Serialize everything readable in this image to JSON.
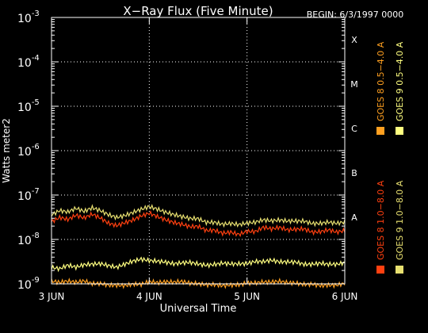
{
  "title": "X−Ray Flux (Five Minute)",
  "begin_label": "BEGIN: 6/3/1997 0000",
  "chart_data": {
    "type": "line",
    "xlabel": "Universal Time",
    "ylabel": "Watts meter2",
    "x_ticks": [
      "3 JUN",
      "4 JUN",
      "5 JUN",
      "6 JUN"
    ],
    "xlim": [
      0,
      72
    ],
    "ylim_exp": [
      -9,
      -3
    ],
    "y_ticks": [
      {
        "exp": -9,
        "label": "-9"
      },
      {
        "exp": -8,
        "label": "-8"
      },
      {
        "exp": -7,
        "label": "-7"
      },
      {
        "exp": -6,
        "label": "-6"
      },
      {
        "exp": -5,
        "label": "-5"
      },
      {
        "exp": -4,
        "label": "-4"
      },
      {
        "exp": -3,
        "label": "-3"
      }
    ],
    "flare_classes": [
      {
        "label": "X",
        "exp": -3.5
      },
      {
        "label": "M",
        "exp": -4.5
      },
      {
        "label": "C",
        "exp": -5.5
      },
      {
        "label": "B",
        "exp": -6.5
      },
      {
        "label": "A",
        "exp": -7.5
      }
    ],
    "grid": true,
    "series": [
      {
        "name": "GOES 8 1.0−8.0 A",
        "color": "#ff4010",
        "x": [
          0,
          2,
          4,
          6,
          8,
          10,
          12,
          14,
          16,
          18,
          20,
          22,
          24,
          26,
          28,
          30,
          32,
          34,
          36,
          38,
          40,
          42,
          44,
          46,
          48,
          50,
          52,
          54,
          56,
          58,
          60,
          62,
          64,
          66,
          68,
          70,
          72
        ],
        "y": [
          2.5e-08,
          3e-08,
          2.6e-08,
          3.2e-08,
          2.8e-08,
          3.5e-08,
          3e-08,
          2.4e-08,
          2.2e-08,
          2.6e-08,
          3e-08,
          3.6e-08,
          4e-08,
          3.2e-08,
          2.6e-08,
          2.2e-08,
          2e-08,
          1.8e-08,
          1.9e-08,
          1.6e-08,
          1.7e-08,
          1.5e-08,
          1.6e-08,
          1.4e-08,
          1.6e-08,
          1.5e-08,
          1.8e-08,
          1.6e-08,
          1.7e-08,
          1.5e-08,
          1.6e-08,
          1.7e-08,
          1.5e-08,
          1.6e-08,
          1.8e-08,
          1.6e-08,
          1.7e-08
        ]
      },
      {
        "name": "GOES 9 1.0−8.0 A",
        "color": "#e8e070",
        "x": [
          0,
          2,
          4,
          6,
          8,
          10,
          12,
          14,
          16,
          18,
          20,
          22,
          24,
          26,
          28,
          30,
          32,
          34,
          36,
          38,
          40,
          42,
          44,
          46,
          48,
          50,
          52,
          54,
          56,
          58,
          60,
          62,
          64,
          66,
          68,
          70,
          72
        ],
        "y": [
          3.5e-08,
          4.2e-08,
          3.8e-08,
          4.6e-08,
          4e-08,
          5e-08,
          4.5e-08,
          3.8e-08,
          3.4e-08,
          3.8e-08,
          4.4e-08,
          5e-08,
          5.5e-08,
          4.6e-08,
          3.8e-08,
          3.3e-08,
          3e-08,
          2.8e-08,
          2.9e-08,
          2.5e-08,
          2.6e-08,
          2.4e-08,
          2.5e-08,
          2.3e-08,
          2.4e-08,
          2.4e-08,
          2.6e-08,
          2.4e-08,
          2.5e-08,
          2.4e-08,
          2.5e-08,
          2.6e-08,
          2.4e-08,
          2.5e-08,
          2.7e-08,
          2.5e-08,
          2.6e-08
        ]
      },
      {
        "name": "GOES 8 0.5−4.0 A",
        "color": "#ffa020",
        "x": [
          0,
          2,
          4,
          6,
          8,
          10,
          12,
          14,
          16,
          18,
          20,
          22,
          24,
          26,
          28,
          30,
          32,
          34,
          36,
          38,
          40,
          42,
          44,
          46,
          48,
          50,
          52,
          54,
          56,
          58,
          60,
          62,
          64,
          66,
          68,
          70,
          72
        ],
        "y": [
          1.1e-09,
          1e-09,
          1.05e-09,
          1e-09,
          1.1e-09,
          1e-09,
          1.05e-09,
          1e-09,
          1.02e-09,
          1e-09,
          1.05e-09,
          1e-09,
          1.1e-09,
          1e-09,
          1.02e-09,
          1e-09,
          1.05e-09,
          1e-09,
          1.02e-09,
          1e-09,
          1.05e-09,
          1e-09,
          1.02e-09,
          1e-09,
          1.05e-09,
          1e-09,
          1.02e-09,
          1e-09,
          1.05e-09,
          1e-09,
          1.02e-09,
          1e-09,
          1.05e-09,
          1e-09,
          1.02e-09,
          1e-09,
          1.05e-09
        ]
      },
      {
        "name": "GOES 9 0.5−4.0 A",
        "color": "#ffff80",
        "x": [
          0,
          2,
          4,
          6,
          8,
          10,
          12,
          14,
          16,
          18,
          20,
          22,
          24,
          26,
          28,
          30,
          32,
          34,
          36,
          38,
          40,
          42,
          44,
          46,
          48,
          50,
          52,
          54,
          56,
          58,
          60,
          62,
          64,
          66,
          68,
          70,
          72
        ],
        "y": [
          2.2e-09,
          2e-09,
          2.4e-09,
          2.2e-09,
          2.6e-09,
          2.8e-09,
          3e-09,
          2.8e-09,
          2.6e-09,
          3e-09,
          3.4e-09,
          3.6e-09,
          3.2e-09,
          3e-09,
          2.8e-09,
          2.6e-09,
          2.8e-09,
          3e-09,
          2.9e-09,
          2.8e-09,
          3e-09,
          3.2e-09,
          3e-09,
          2.9e-09,
          2.8e-09,
          3e-09,
          2.9e-09,
          3.1e-09,
          2.9e-09,
          3e-09,
          3.1e-09,
          2.9e-09,
          3e-09,
          3.2e-09,
          3e-09,
          2.9e-09,
          3e-09
        ]
      }
    ]
  }
}
